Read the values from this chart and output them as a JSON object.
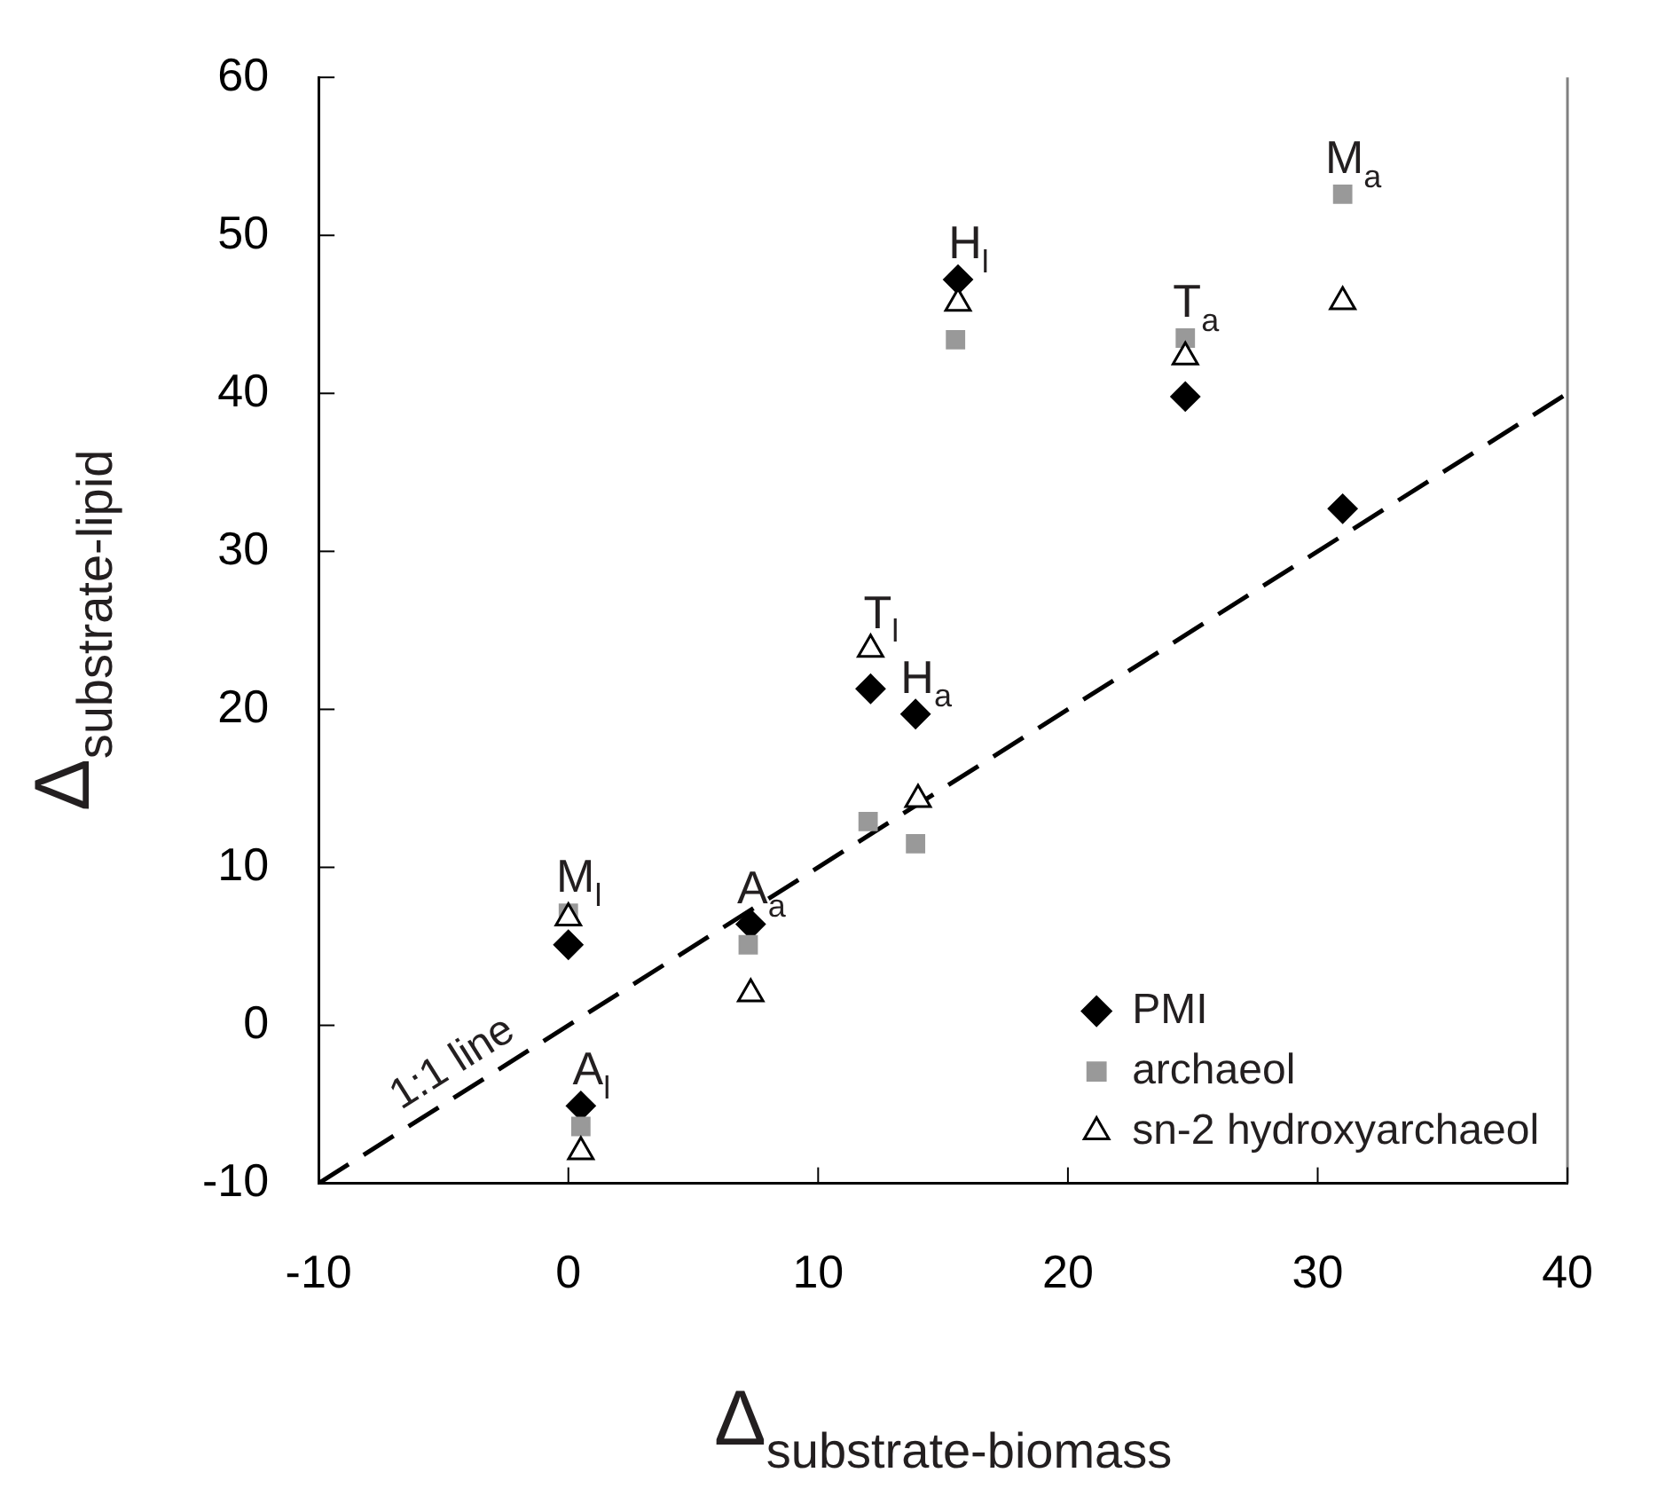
{
  "chart_data": {
    "type": "scatter",
    "xlabel": "Δ$_{substrate-biomass}$",
    "ylabel": "Δ$_{substrate-lipid}$",
    "xlim": [
      -10,
      40
    ],
    "xticks": [
      -10,
      0,
      10,
      20,
      30,
      40
    ],
    "ylim": [
      -10,
      60
    ],
    "yticks": [
      -10,
      0,
      10,
      20,
      30,
      40,
      50,
      60
    ],
    "grid": false,
    "legend": "bottom right",
    "series": [
      {
        "name": "PMI",
        "color": "#000000",
        "marker": "diamond",
        "x": [
          0.0,
          0.5,
          7.3,
          12.1,
          13.9,
          15.6,
          24.7,
          31.0
        ],
        "values": [
          5.1,
          -5.1,
          6.4,
          21.3,
          19.7,
          47.2,
          39.8,
          32.7
        ]
      },
      {
        "name": "archaeol",
        "color": "#999999",
        "marker": "square",
        "x": [
          0.0,
          0.5,
          7.2,
          12.0,
          13.9,
          15.5,
          24.7,
          31.0
        ],
        "values": [
          7.1,
          -6.4,
          5.1,
          12.9,
          11.5,
          43.4,
          43.5,
          52.6
        ]
      },
      {
        "name": "sn-2 hydroxyarchaeol",
        "color": "#000000",
        "marker": "triangle",
        "x": [
          0.0,
          0.5,
          7.3,
          12.1,
          14.0,
          15.6,
          24.7,
          31.0
        ],
        "values": [
          6.8,
          -8.0,
          2.0,
          23.8,
          14.3,
          45.7,
          42.3,
          45.8
        ]
      },
      {
        "type": "line",
        "color": "#000000",
        "marker": "none",
        "line_style": "dashed",
        "x": [
          -10,
          40
        ],
        "values": [
          -10,
          40
        ]
      }
    ],
    "annotations": [
      {
        "text": "M$_{l}$",
        "x": 0.0,
        "y": 7.1
      },
      {
        "text": "A$_{l}$",
        "x": 0.5,
        "y": -5.1
      },
      {
        "text": "A$_{a}$",
        "x": 7.3,
        "y": 6.4
      },
      {
        "text": "T$_{l}$",
        "x": 12.1,
        "y": 23.8
      },
      {
        "text": "H$_{a}$",
        "x": 13.9,
        "y": 19.7
      },
      {
        "text": "H$_{l}$",
        "x": 15.6,
        "y": 47.2
      },
      {
        "text": "T$_{a}$",
        "x": 24.7,
        "y": 43.5
      },
      {
        "text": "M$_{a}$",
        "x": 31.0,
        "y": 52.6
      },
      {
        "text": "1:1 line",
        "x": -4,
        "y": -4
      }
    ]
  }
}
